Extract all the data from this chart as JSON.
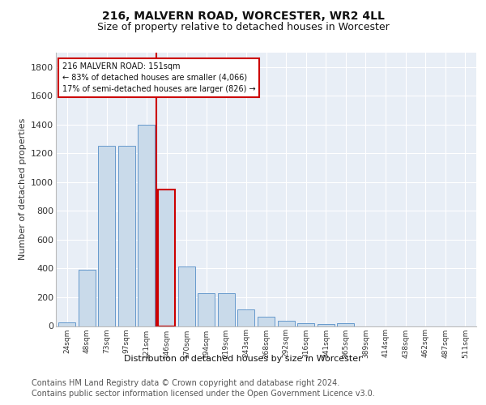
{
  "title1": "216, MALVERN ROAD, WORCESTER, WR2 4LL",
  "title2": "Size of property relative to detached houses in Worcester",
  "xlabel": "Distribution of detached houses by size in Worcester",
  "ylabel": "Number of detached properties",
  "footer": "Contains HM Land Registry data © Crown copyright and database right 2024.\nContains public sector information licensed under the Open Government Licence v3.0.",
  "categories": [
    "24sqm",
    "48sqm",
    "73sqm",
    "97sqm",
    "121sqm",
    "146sqm",
    "170sqm",
    "194sqm",
    "219sqm",
    "243sqm",
    "268sqm",
    "292sqm",
    "316sqm",
    "341sqm",
    "365sqm",
    "389sqm",
    "414sqm",
    "438sqm",
    "462sqm",
    "487sqm",
    "511sqm"
  ],
  "values": [
    25,
    390,
    1250,
    1250,
    1400,
    950,
    415,
    230,
    230,
    115,
    65,
    35,
    18,
    15,
    18,
    0,
    0,
    0,
    0,
    0,
    0
  ],
  "bar_color": "#c9daea",
  "bar_edge_color": "#6699cc",
  "highlight_bar_index": 5,
  "vline_x": 4.5,
  "vline_color": "#cc0000",
  "annotation_title": "216 MALVERN ROAD: 151sqm",
  "annotation_line1": "← 83% of detached houses are smaller (4,066)",
  "annotation_line2": "17% of semi-detached houses are larger (826) →",
  "annotation_box_edge_color": "#cc0000",
  "ylim": [
    0,
    1900
  ],
  "yticks": [
    0,
    200,
    400,
    600,
    800,
    1000,
    1200,
    1400,
    1600,
    1800
  ],
  "bg_color": "#e8eef6",
  "grid_color": "white",
  "title1_fontsize": 10,
  "title2_fontsize": 9,
  "footer_fontsize": 7
}
